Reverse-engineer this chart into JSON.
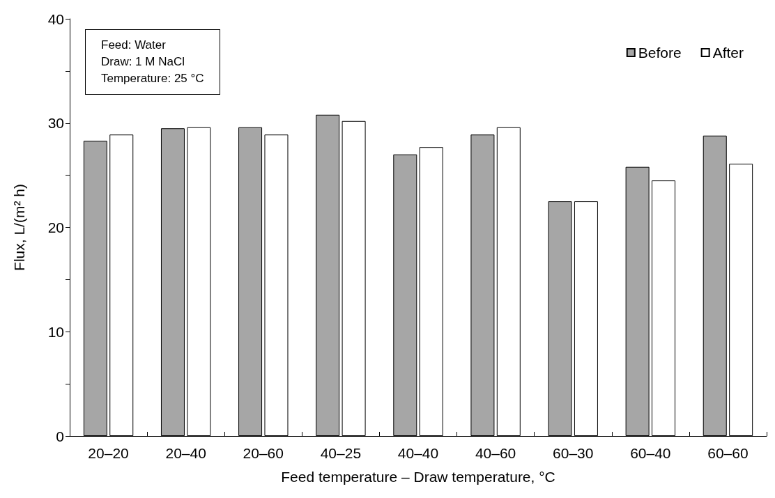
{
  "chart_data": {
    "type": "bar",
    "xlabel": "Feed temperature – Draw temperature, °C",
    "ylabel": "Flux, L/(m² h)",
    "categories": [
      "20–20",
      "20–40",
      "20–60",
      "40–25",
      "40–40",
      "40–60",
      "60–30",
      "60–40",
      "60–60"
    ],
    "series": [
      {
        "name": "Before",
        "color": "#a6a6a6",
        "values": [
          28.3,
          29.5,
          29.6,
          30.8,
          27.0,
          28.9,
          22.5,
          25.8,
          28.8
        ]
      },
      {
        "name": "After",
        "color": "#ffffff",
        "values": [
          28.9,
          29.6,
          28.9,
          30.2,
          27.7,
          29.6,
          22.5,
          24.5,
          26.1
        ]
      }
    ],
    "ylim": [
      0,
      40
    ],
    "yticks": [
      0,
      {
        "value": 5,
        "label": null
      },
      10,
      {
        "value": 15,
        "label": null
      },
      20,
      {
        "value": 25,
        "label": null
      },
      30,
      {
        "value": 35,
        "label": null
      },
      40
    ],
    "grid": false,
    "legend": "top right",
    "annotations": [
      "Feed: Water",
      "Draw: 1 M NaCl",
      "Temperature: 25 °C"
    ]
  }
}
